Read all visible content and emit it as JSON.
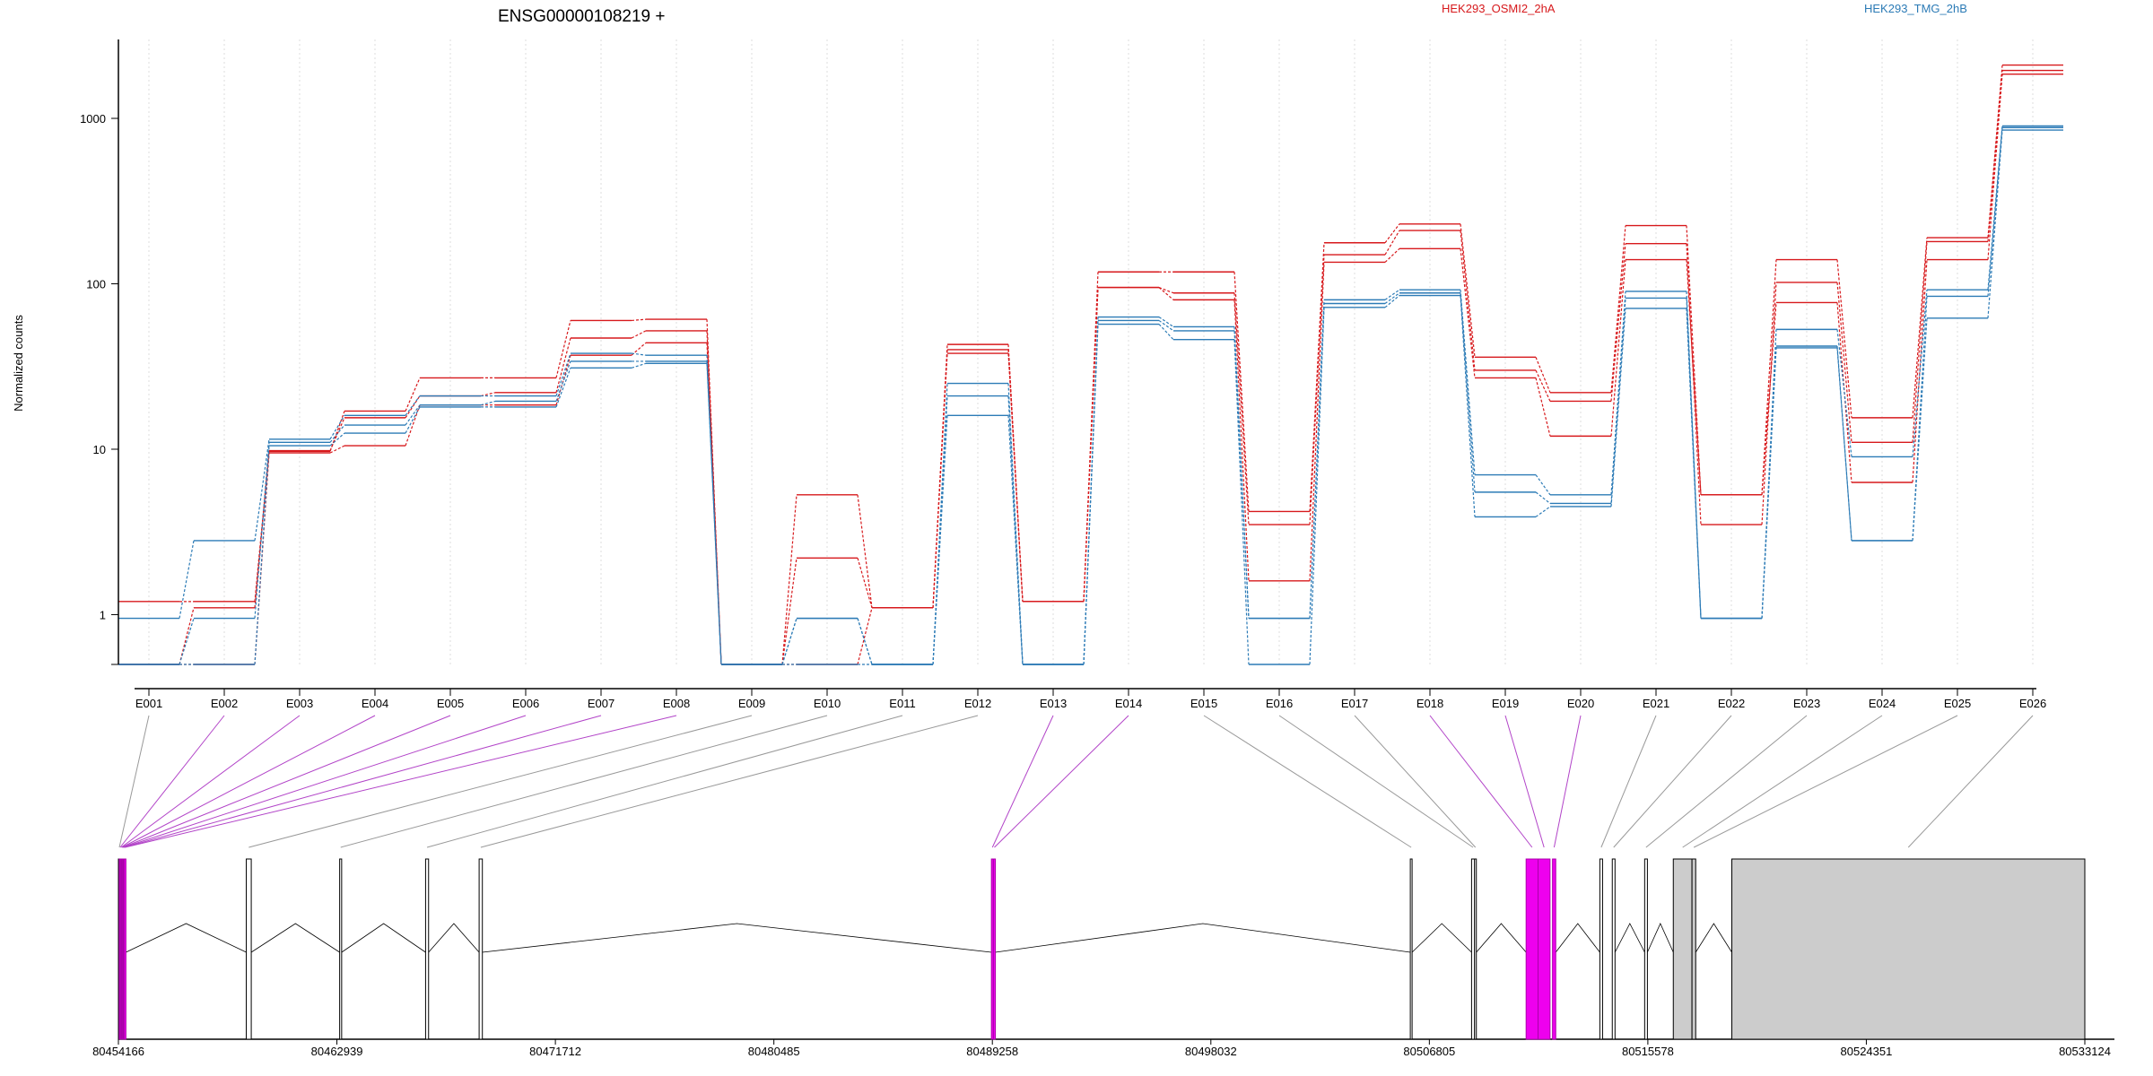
{
  "chart_data": {
    "type": "line",
    "title": "ENSG00000108219 +",
    "ylabel": "Normalized counts",
    "yscale": "log",
    "ylim": [
      0.5,
      3000
    ],
    "yticks": [
      1,
      10,
      100,
      1000
    ],
    "ytick_labels": [
      "1",
      "10",
      "100",
      "1000"
    ],
    "categories": [
      "E001",
      "E002",
      "E003",
      "E004",
      "E005",
      "E006",
      "E007",
      "E008",
      "E009",
      "E010",
      "E011",
      "E012",
      "E013",
      "E014",
      "E015",
      "E016",
      "E017",
      "E018",
      "E019",
      "E020",
      "E021",
      "E022",
      "E023",
      "E024",
      "E025",
      "E026"
    ],
    "legend": [
      {
        "label": "HEK293_OSMI2_2hA",
        "color": "#d7191c"
      },
      {
        "label": "HEK293_TMG_2hB",
        "color": "#2c7bb6"
      }
    ],
    "grid": true,
    "series": [
      {
        "group": "HEK293_OSMI2_2hA",
        "color": "#d7191c",
        "values": [
          1.2,
          1.2,
          9.7,
          17.0,
          27.0,
          27.0,
          60.0,
          61.0,
          0.5,
          5.3,
          1.1,
          43.0,
          1.2,
          118.0,
          118.0,
          4.2,
          177.0,
          230.0,
          36.0,
          22.0,
          225.0,
          5.3,
          140.0,
          15.5,
          190.0,
          2100.0
        ]
      },
      {
        "group": "HEK293_OSMI2_2hA",
        "color": "#d7191c",
        "values": [
          0.5,
          1.1,
          9.8,
          15.5,
          21.0,
          22.0,
          47.0,
          52.0,
          0.5,
          2.2,
          1.1,
          40.0,
          1.2,
          95.0,
          88.0,
          3.5,
          150.0,
          210.0,
          30.0,
          19.5,
          175.0,
          3.5,
          102.0,
          11.0,
          180.0,
          1950.0
        ]
      },
      {
        "group": "HEK293_OSMI2_2hA",
        "color": "#d7191c",
        "values": [
          0.5,
          0.5,
          9.5,
          10.5,
          18.5,
          18.5,
          37.0,
          44.0,
          0.5,
          0.5,
          1.1,
          38.0,
          1.2,
          95.0,
          80.0,
          1.6,
          135.0,
          163.0,
          27.0,
          12.0,
          140.0,
          5.3,
          77.0,
          6.3,
          140.0,
          1850.0
        ]
      },
      {
        "group": "HEK293_TMG_2hB",
        "color": "#2c7bb6",
        "values": [
          0.95,
          2.8,
          11.5,
          16.0,
          21.0,
          21.0,
          38.0,
          37.0,
          0.5,
          0.95,
          0.5,
          25.0,
          0.5,
          63.0,
          55.0,
          0.95,
          80.0,
          92.0,
          7.0,
          5.3,
          90.0,
          0.95,
          53.0,
          9.0,
          92.0,
          900.0
        ]
      },
      {
        "group": "HEK293_TMG_2hB",
        "color": "#2c7bb6",
        "values": [
          0.5,
          0.95,
          11.0,
          14.0,
          18.5,
          19.5,
          34.0,
          34.0,
          0.5,
          0.95,
          0.5,
          21.0,
          0.5,
          60.0,
          52.0,
          0.95,
          76.0,
          88.0,
          5.5,
          4.7,
          82.0,
          0.95,
          42.0,
          2.8,
          84.0,
          880.0
        ]
      },
      {
        "group": "HEK293_TMG_2hB",
        "color": "#2c7bb6",
        "values": [
          0.5,
          0.5,
          10.5,
          12.5,
          18.0,
          18.0,
          31.0,
          33.0,
          0.5,
          0.5,
          0.5,
          16.0,
          0.5,
          57.0,
          46.0,
          0.5,
          72.0,
          85.0,
          3.9,
          4.5,
          71.0,
          0.95,
          41.0,
          2.8,
          62.0,
          850.0
        ]
      }
    ],
    "genome_axis": {
      "tick_labels": [
        "80454166",
        "80462939",
        "80471712",
        "80480485",
        "80489258",
        "80498032",
        "80506805",
        "80515578",
        "80524351",
        "80533124"
      ],
      "tick_values": [
        80454166,
        80462939,
        80471712,
        80480485,
        80489258,
        80498032,
        80506805,
        80515578,
        80524351,
        80533124
      ],
      "range": [
        80454166,
        80533124
      ]
    },
    "exons": [
      {
        "id": "E001",
        "start": 80454166,
        "end": 80454200,
        "highlight": false,
        "fill": "#000000"
      },
      {
        "id": "E002",
        "start": 80454200,
        "end": 80454245,
        "highlight": true
      },
      {
        "id": "E003",
        "start": 80454245,
        "end": 80454275,
        "highlight": true
      },
      {
        "id": "E004",
        "start": 80454275,
        "end": 80454305,
        "highlight": true
      },
      {
        "id": "E005",
        "start": 80454305,
        "end": 80454335,
        "highlight": true
      },
      {
        "id": "E006",
        "start": 80454335,
        "end": 80454365,
        "highlight": true
      },
      {
        "id": "E007",
        "start": 80454365,
        "end": 80454395,
        "highlight": true
      },
      {
        "id": "E008",
        "start": 80454395,
        "end": 80454425,
        "highlight": true
      },
      {
        "id": "E009",
        "start": 80459300,
        "end": 80459500,
        "highlight": false
      },
      {
        "id": "E010",
        "start": 80463050,
        "end": 80463130,
        "highlight": false
      },
      {
        "id": "E011",
        "start": 80466500,
        "end": 80466620,
        "highlight": false
      },
      {
        "id": "E012",
        "start": 80468650,
        "end": 80468780,
        "highlight": false
      },
      {
        "id": "E013",
        "start": 80489220,
        "end": 80489300,
        "highlight": true
      },
      {
        "id": "E014",
        "start": 80489300,
        "end": 80489380,
        "highlight": true
      },
      {
        "id": "E015",
        "start": 80506040,
        "end": 80506110,
        "highlight": false
      },
      {
        "id": "E016",
        "start": 80508500,
        "end": 80508620,
        "highlight": false
      },
      {
        "id": "E017",
        "start": 80508620,
        "end": 80508680,
        "highlight": false
      },
      {
        "id": "E018",
        "start": 80510690,
        "end": 80511170,
        "highlight": true
      },
      {
        "id": "E019",
        "start": 80511170,
        "end": 80511650,
        "highlight": true
      },
      {
        "id": "E020",
        "start": 80511750,
        "end": 80511880,
        "highlight": true
      },
      {
        "id": "E021",
        "start": 80513650,
        "end": 80513760,
        "highlight": false
      },
      {
        "id": "E022",
        "start": 80514150,
        "end": 80514260,
        "highlight": false
      },
      {
        "id": "E023",
        "start": 80515450,
        "end": 80515560,
        "highlight": false
      },
      {
        "id": "E024",
        "start": 80516600,
        "end": 80517350,
        "highlight": false,
        "fill": "#cccccc"
      },
      {
        "id": "E025",
        "start": 80517350,
        "end": 80517500,
        "highlight": false,
        "fill": "#cccccc"
      },
      {
        "id": "E026",
        "start": 80518950,
        "end": 80533124,
        "highlight": false,
        "fill": "#cccccc"
      }
    ],
    "colors": {
      "highlight": "#ee00ee",
      "connector_normal": "#999999",
      "connector_highlight": "#b244c8"
    }
  }
}
